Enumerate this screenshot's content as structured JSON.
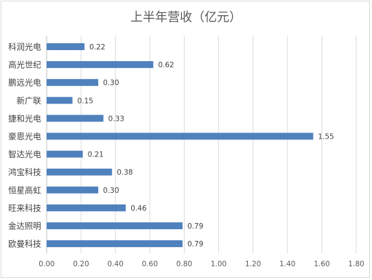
{
  "chart_data": {
    "type": "bar",
    "orientation": "horizontal",
    "title": "上半年营收（亿元）",
    "xlabel": "",
    "ylabel": "",
    "categories": [
      "科润光电",
      "高光世纪",
      "鹏远光电",
      "新广联",
      "捷和光电",
      "豪恩光电",
      "智达光电",
      "鸿宝科技",
      "恒星高虹",
      "旺来科技",
      "金达照明",
      "欧曼科技"
    ],
    "values": [
      0.22,
      0.62,
      0.3,
      0.15,
      0.33,
      1.55,
      0.21,
      0.38,
      0.3,
      0.46,
      0.79,
      0.79
    ],
    "value_labels": [
      "0.22",
      "0.62",
      "0.30",
      "0.15",
      "0.33",
      "1.55",
      "0.21",
      "0.38",
      "0.30",
      "0.46",
      "0.79",
      "0.79"
    ],
    "xlim": [
      0,
      1.8
    ],
    "x_ticks": [
      "0.00",
      "0.20",
      "0.40",
      "0.60",
      "0.80",
      "1.00",
      "1.20",
      "1.40",
      "1.60",
      "1.80"
    ],
    "grid": "vertical",
    "legend": "none",
    "bar_color": "#4f81bd",
    "grid_color": "#d9d9d9"
  }
}
